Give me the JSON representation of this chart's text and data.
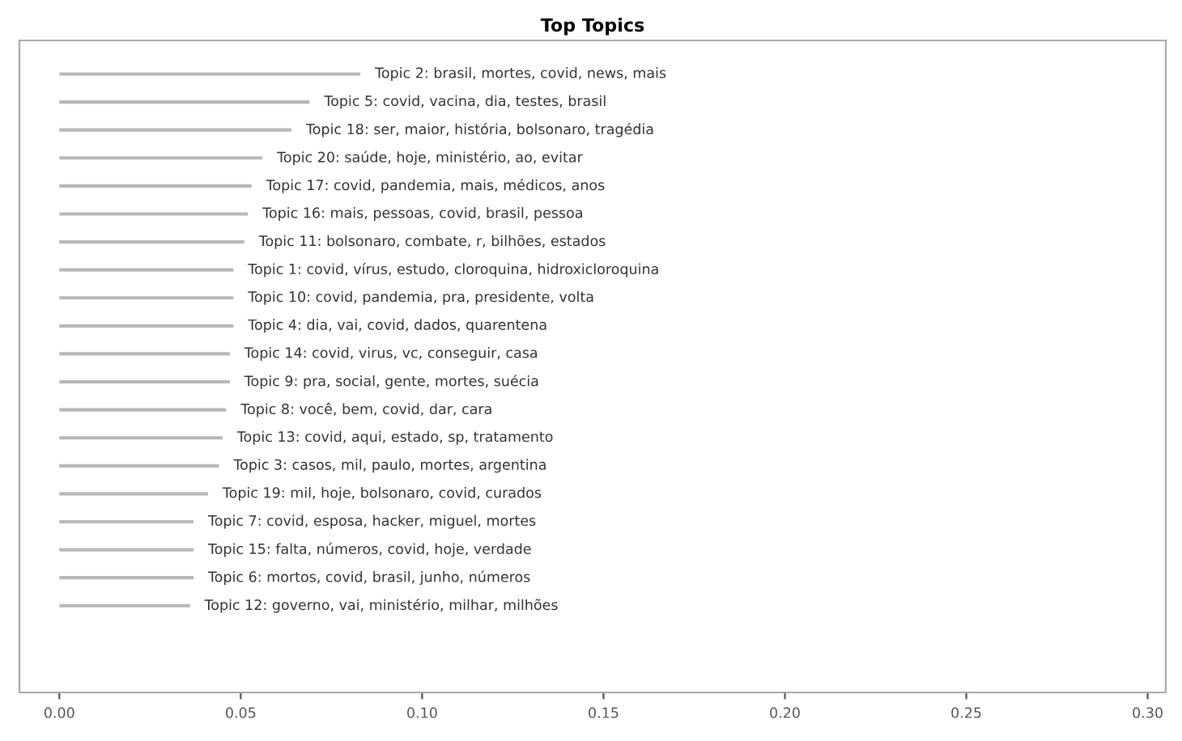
{
  "chart_data": {
    "type": "bar",
    "orientation": "horizontal",
    "title": "Top Topics",
    "tick_labels": "x",
    "grid": false,
    "legend": false,
    "categories": [
      "Topic 2: brasil, mortes, covid, news, mais",
      "Topic 5: covid, vacina, dia, testes, brasil",
      "Topic 18: ser, maior, história, bolsonaro, tragédia",
      "Topic 20: saúde, hoje, ministério, ao, evitar",
      "Topic 17: covid, pandemia, mais, médicos, anos",
      "Topic 16: mais, pessoas, covid, brasil, pessoa",
      "Topic 11: bolsonaro, combate, r, bilhões, estados",
      "Topic 1: covid, vírus, estudo, cloroquina, hidroxicloroquina",
      "Topic 10: covid, pandemia, pra, presidente, volta",
      "Topic 4: dia, vai, covid, dados, quarentena",
      "Topic 14: covid, virus, vc, conseguir, casa",
      "Topic 9: pra, social, gente, mortes, suécia",
      "Topic 8: você, bem, covid, dar, cara",
      "Topic 13: covid, aqui, estado, sp, tratamento",
      "Topic 3: casos, mil, paulo, mortes, argentina",
      "Topic 19: mil, hoje, bolsonaro, covid, curados",
      "Topic 7: covid, esposa, hacker, miguel, mortes",
      "Topic 15: falta, números, covid, hoje, verdade",
      "Topic 6: mortos, covid, brasil, junho, números",
      "Topic 12: governo, vai, ministério, milhar, milhões"
    ],
    "values": [
      0.083,
      0.069,
      0.064,
      0.056,
      0.053,
      0.052,
      0.051,
      0.048,
      0.048,
      0.048,
      0.047,
      0.047,
      0.046,
      0.045,
      0.044,
      0.041,
      0.037,
      0.037,
      0.037,
      0.036
    ],
    "color": "#b8b8b8",
    "xlim": [
      -0.011,
      0.305
    ],
    "xticks": [
      {
        "value": 0,
        "label": "0.00"
      },
      {
        "value": 0.05,
        "label": "0.05"
      },
      {
        "value": 0.1,
        "label": "0.10"
      },
      {
        "value": 0.15,
        "label": "0.15"
      },
      {
        "value": 0.2,
        "label": "0.20"
      },
      {
        "value": 0.25,
        "label": "0.25"
      },
      {
        "value": 0.3,
        "label": "0.30"
      }
    ]
  }
}
